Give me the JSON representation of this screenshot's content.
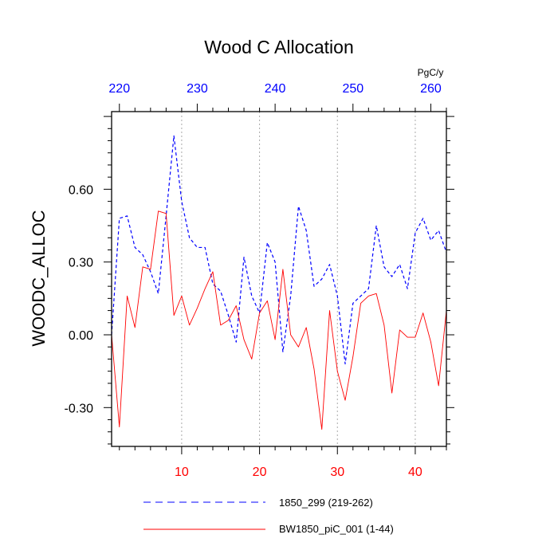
{
  "chart_data": {
    "type": "line",
    "title": "Wood C Allocation",
    "ylabel": "WOODC_ALLOC",
    "units": "PgC/y",
    "ylim": [
      -0.46,
      0.92
    ],
    "yticks": [
      -0.3,
      0.0,
      0.3,
      0.6
    ],
    "ytick_labels": [
      "-0.30",
      "0.00",
      "0.30",
      "0.60"
    ],
    "bottom_axis": {
      "range": [
        1,
        44
      ],
      "ticks": [
        10,
        20,
        30,
        40
      ],
      "color": "#ff0000"
    },
    "top_axis": {
      "range": [
        219,
        262
      ],
      "ticks": [
        220,
        230,
        240,
        250,
        260
      ],
      "color": "#0000ff"
    },
    "grid": "vertical dotted",
    "series": [
      {
        "name": "1850_299 (219-262)",
        "color": "#0000ff",
        "style": "dashed",
        "axis": "top",
        "x": [
          219,
          220,
          221,
          222,
          223,
          224,
          225,
          226,
          227,
          228,
          229,
          230,
          231,
          232,
          233,
          234,
          235,
          236,
          237,
          238,
          239,
          240,
          241,
          242,
          243,
          244,
          245,
          246,
          247,
          248,
          249,
          250,
          251,
          252,
          253,
          254,
          255,
          256,
          257,
          258,
          259,
          260,
          261,
          262
        ],
        "values": [
          0.0,
          0.48,
          0.49,
          0.36,
          0.33,
          0.26,
          0.17,
          0.49,
          0.82,
          0.55,
          0.4,
          0.36,
          0.36,
          0.21,
          0.18,
          0.08,
          -0.03,
          0.32,
          0.16,
          0.09,
          0.38,
          0.3,
          -0.07,
          0.16,
          0.53,
          0.43,
          0.2,
          0.23,
          0.29,
          0.16,
          -0.12,
          0.13,
          0.16,
          0.19,
          0.45,
          0.28,
          0.24,
          0.29,
          0.19,
          0.42,
          0.48,
          0.39,
          0.43,
          0.34
        ]
      },
      {
        "name": "BW1850_piC_001 (1-44)",
        "color": "#ff0000",
        "style": "solid",
        "axis": "bottom",
        "x": [
          1,
          2,
          3,
          4,
          5,
          6,
          7,
          8,
          9,
          10,
          11,
          12,
          13,
          14,
          15,
          16,
          17,
          18,
          19,
          20,
          21,
          22,
          23,
          24,
          25,
          26,
          27,
          28,
          29,
          30,
          31,
          32,
          33,
          34,
          35,
          36,
          37,
          38,
          39,
          40,
          41,
          42,
          43,
          44
        ],
        "values": [
          0.0,
          -0.38,
          0.16,
          0.03,
          0.28,
          0.27,
          0.51,
          0.5,
          0.08,
          0.16,
          0.04,
          0.11,
          0.19,
          0.26,
          0.04,
          0.06,
          0.12,
          -0.02,
          -0.1,
          0.09,
          0.14,
          -0.02,
          0.27,
          0.0,
          -0.05,
          0.03,
          -0.14,
          -0.39,
          0.1,
          -0.15,
          -0.27,
          -0.09,
          0.13,
          0.16,
          0.17,
          0.04,
          -0.24,
          0.02,
          -0.01,
          -0.01,
          0.09,
          -0.03,
          -0.21,
          0.1
        ]
      }
    ]
  }
}
